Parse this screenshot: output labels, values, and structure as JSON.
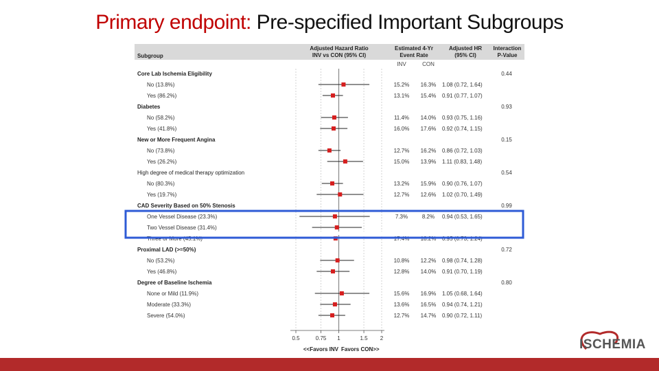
{
  "slide": {
    "title_prefix": "Primary endpoint:",
    "title_rest": " Pre-specified Important Subgroups",
    "logo_text": "ISCHEMIA"
  },
  "colors": {
    "accent_red": "#c00000",
    "marker": "#d62020",
    "highlight_box": "#2e5bd6",
    "bar": "#b22a2a",
    "header_bg": "#d9d9d9"
  },
  "header": {
    "subgroup": "Subgroup",
    "hr_col": [
      "Adjusted Hazard Ratio",
      "INV vs CON (95% CI)"
    ],
    "rate_col": [
      "Estimated 4-Yr",
      "Event Rate"
    ],
    "ahr_col": [
      "Adjusted HR",
      "(95% CI)"
    ],
    "pint_col": [
      "Interaction",
      "P-Value"
    ],
    "inv": "INV",
    "con": "CON"
  },
  "footer": {
    "favors_left": "<<Favors INV",
    "favors_right": "Favors CON>>"
  },
  "chart_data": {
    "type": "forest",
    "x_scale": "log",
    "xlim": [
      0.5,
      2
    ],
    "x_ticks": [
      0.5,
      0.75,
      1,
      1.5,
      2
    ],
    "x_tick_labels": [
      "0.5",
      "0.75",
      "1",
      "1.5",
      "2"
    ],
    "reference_line": 1,
    "highlighted_group": "CAD Severity Based on 50% Stenosis",
    "rows": [
      {
        "kind": "group",
        "label": "Core Lab Ischemia Eligibility",
        "p": "0.44"
      },
      {
        "kind": "item",
        "label": "No (13.8%)",
        "inv": "15.2%",
        "con": "16.3%",
        "hr_text": "1.08 (0.72, 1.64)",
        "hr": 1.08,
        "lo": 0.72,
        "hi": 1.64
      },
      {
        "kind": "item",
        "label": "Yes (86.2%)",
        "inv": "13.1%",
        "con": "15.4%",
        "hr_text": "0.91 (0.77, 1.07)",
        "hr": 0.91,
        "lo": 0.77,
        "hi": 1.07
      },
      {
        "kind": "group",
        "label": "Diabetes",
        "p": "0.93"
      },
      {
        "kind": "item",
        "label": "No (58.2%)",
        "inv": "11.4%",
        "con": "14.0%",
        "hr_text": "0.93 (0.75, 1.16)",
        "hr": 0.93,
        "lo": 0.75,
        "hi": 1.16
      },
      {
        "kind": "item",
        "label": "Yes (41.8%)",
        "inv": "16.0%",
        "con": "17.6%",
        "hr_text": "0.92 (0.74, 1.15)",
        "hr": 0.92,
        "lo": 0.74,
        "hi": 1.15
      },
      {
        "kind": "group",
        "label": "New or More Frequent Angina",
        "p": "0.15"
      },
      {
        "kind": "item",
        "label": "No (73.8%)",
        "inv": "12.7%",
        "con": "16.2%",
        "hr_text": "0.86 (0.72, 1.03)",
        "hr": 0.86,
        "lo": 0.72,
        "hi": 1.03
      },
      {
        "kind": "item",
        "label": "Yes (26.2%)",
        "inv": "15.0%",
        "con": "13.9%",
        "hr_text": "1.11 (0.83, 1.48)",
        "hr": 1.11,
        "lo": 0.83,
        "hi": 1.48
      },
      {
        "kind": "group",
        "label": "High degree of medical therapy optimization",
        "p": "0.54",
        "style": "plain"
      },
      {
        "kind": "item",
        "label": "No (80.3%)",
        "inv": "13.2%",
        "con": "15.9%",
        "hr_text": "0.90 (0.76, 1.07)",
        "hr": 0.9,
        "lo": 0.76,
        "hi": 1.07
      },
      {
        "kind": "item",
        "label": "Yes (19.7%)",
        "inv": "12.7%",
        "con": "12.6%",
        "hr_text": "1.02 (0.70, 1.49)",
        "hr": 1.02,
        "lo": 0.7,
        "hi": 1.49
      },
      {
        "kind": "group",
        "label": "CAD Severity Based on 50% Stenosis",
        "p": "0.99"
      },
      {
        "kind": "item",
        "label": "One Vessel Disease (23.3%)",
        "inv": "7.3%",
        "con": "8.2%",
        "hr_text": "0.94 (0.53, 1.65)",
        "hr": 0.94,
        "lo": 0.53,
        "hi": 1.65
      },
      {
        "kind": "item",
        "label": "Two Vessel Disease (31.4%)",
        "inv": "",
        "con": "",
        "hr_text": "",
        "hr": 0.97,
        "lo": 0.65,
        "hi": 1.45,
        "partially_hidden": true
      },
      {
        "kind": "item",
        "label": "Three or More (45.1%)",
        "inv": "17.4%",
        "con": "18.2%",
        "hr_text": "0.95 (0.73, 1.24)",
        "hr": 0.95,
        "lo": 0.73,
        "hi": 1.24
      },
      {
        "kind": "group",
        "label": "Proximal LAD (>=50%)",
        "p": "0.72"
      },
      {
        "kind": "item",
        "label": "No (53.2%)",
        "inv": "10.8%",
        "con": "12.2%",
        "hr_text": "0.98 (0.74, 1.28)",
        "hr": 0.98,
        "lo": 0.74,
        "hi": 1.28
      },
      {
        "kind": "item",
        "label": "Yes (46.8%)",
        "inv": "12.8%",
        "con": "14.0%",
        "hr_text": "0.91 (0.70, 1.19)",
        "hr": 0.91,
        "lo": 0.7,
        "hi": 1.19
      },
      {
        "kind": "group",
        "label": "Degree of Baseline Ischemia",
        "p": "0.80"
      },
      {
        "kind": "item",
        "label": "None or Mild (11.9%)",
        "inv": "15.6%",
        "con": "16.9%",
        "hr_text": "1.05 (0.68, 1.64)",
        "hr": 1.05,
        "lo": 0.68,
        "hi": 1.64
      },
      {
        "kind": "item",
        "label": "Moderate (33.3%)",
        "inv": "13.6%",
        "con": "16.5%",
        "hr_text": "0.94 (0.74, 1.21)",
        "hr": 0.94,
        "lo": 0.74,
        "hi": 1.21
      },
      {
        "kind": "item",
        "label": "Severe (54.0%)",
        "inv": "12.7%",
        "con": "14.7%",
        "hr_text": "0.90 (0.72, 1.11)",
        "hr": 0.9,
        "lo": 0.72,
        "hi": 1.11
      }
    ]
  }
}
